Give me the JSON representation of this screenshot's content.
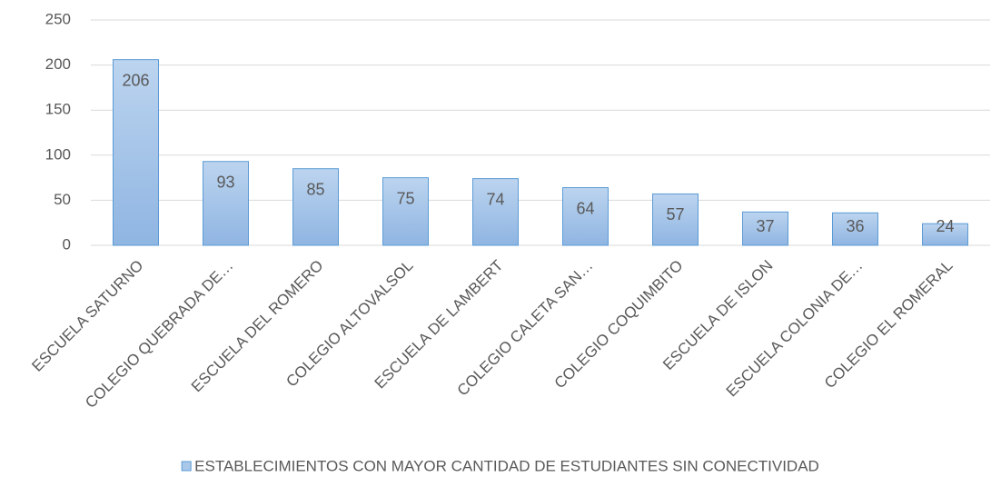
{
  "chart_data": {
    "type": "bar",
    "categories": [
      "ESCUELA SATURNO",
      "COLEGIO QUEBRADA DE…",
      "ESCUELA DEL ROMERO",
      "COLEGIO ALTOVALSOL",
      "ESCUELA DE LAMBERT",
      "COLEGIO CALETA SAN…",
      "COLEGIO COQUIMBITO",
      "ESCUELA DE ISLON",
      "ESCUELA COLONIA DE…",
      "COLEGIO EL ROMERAL"
    ],
    "series": [
      {
        "name": "ESTABLECIMIENTOS CON MAYOR CANTIDAD DE ESTUDIANTES SIN CONECTIVIDAD",
        "color": "#a9c8ea",
        "edge_color": "#5b9bd5",
        "values": [
          206,
          93,
          85,
          75,
          74,
          64,
          57,
          37,
          36,
          24
        ]
      }
    ],
    "ylim": [
      0,
      250
    ],
    "yticks": [
      0,
      50,
      100,
      150,
      200,
      250
    ],
    "grid": true,
    "legend": "bottom"
  }
}
